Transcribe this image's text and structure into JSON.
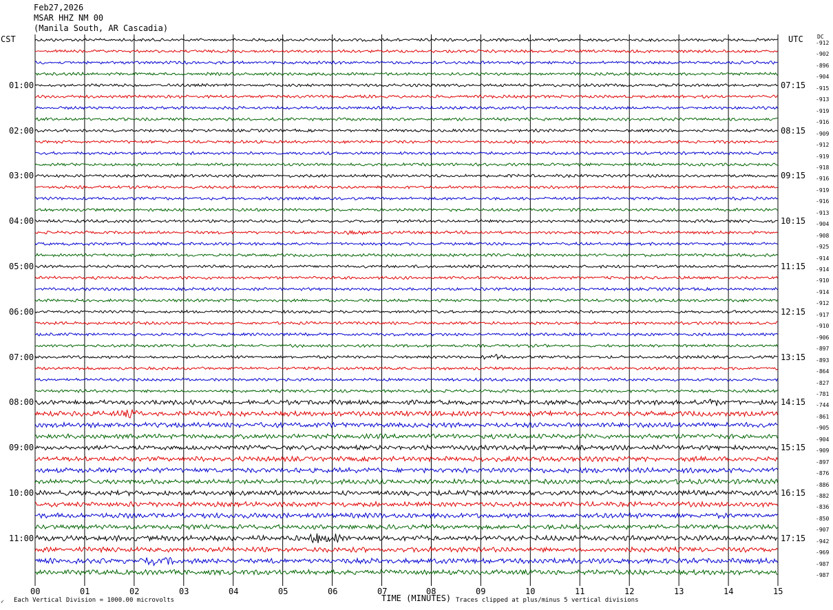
{
  "header": {
    "date": "Feb27,2026",
    "station": "MSAR HHZ NM 00",
    "location": "(Manila South, AR Cascadia)"
  },
  "left_timezone": "CST",
  "right_timezone": "UTC",
  "dc_header": "DC",
  "footer": {
    "corner_mark": "✓",
    "scale_note": "Each Vertical Division = 1000.00 microvolts",
    "xlabel": "TIME (MINUTES)",
    "clip_note": "Traces clipped at plus/minus 5 vertical divisions"
  },
  "chart_data": {
    "type": "line",
    "xlabel": "TIME (MINUTES)",
    "xlim": [
      0,
      15
    ],
    "x_ticks": [
      "00",
      "01",
      "02",
      "03",
      "04",
      "05",
      "06",
      "07",
      "08",
      "09",
      "10",
      "11",
      "12",
      "13",
      "14",
      "15"
    ],
    "left_hour_labels": [
      "01:00",
      "02:00",
      "03:00",
      "04:00",
      "05:00",
      "06:00",
      "07:00",
      "08:00",
      "09:00",
      "10:00",
      "11:00"
    ],
    "right_hour_labels": [
      "07:15",
      "08:15",
      "09:15",
      "10:15",
      "11:15",
      "12:15",
      "13:15",
      "14:15",
      "15:15",
      "16:15",
      "17:15"
    ],
    "trace_colors": [
      "#000000",
      "#e00000",
      "#0000d0",
      "#006400"
    ],
    "rows_count": 48,
    "dc_offsets": [
      -912,
      -902,
      -896,
      -904,
      -915,
      -913,
      -919,
      -916,
      -909,
      -912,
      -919,
      -918,
      -916,
      -919,
      -916,
      -913,
      -904,
      -908,
      -925,
      -914,
      -914,
      -910,
      -914,
      -912,
      -917,
      -910,
      -906,
      -897,
      -893,
      -864,
      -827,
      -781,
      -744,
      -861,
      -905,
      -904,
      -909,
      -897,
      -876,
      -886,
      -882,
      -836,
      -850,
      -907,
      -942,
      -969,
      -987,
      -987
    ],
    "amplitude": [
      1,
      1,
      1,
      1,
      1,
      1,
      1,
      1,
      1,
      1,
      1,
      1,
      1,
      1,
      1,
      1,
      1,
      1,
      1,
      1,
      1,
      1,
      1,
      1,
      1,
      1,
      1,
      1,
      1,
      1,
      1,
      1,
      1.6,
      1.7,
      1.7,
      1.6,
      1.6,
      1.7,
      1.7,
      1.6,
      1.7,
      1.7,
      1.7,
      1.6,
      1.8,
      1.7,
      1.8,
      1.7
    ],
    "events": [
      {
        "row": 17,
        "minute": 6.5,
        "amp": 2.0
      },
      {
        "row": 28,
        "minute": 9.3,
        "amp": 2.0
      },
      {
        "row": 44,
        "minute": 5.85,
        "amp": 4.0
      },
      {
        "row": 46,
        "minute": 2.5,
        "amp": 2.0
      },
      {
        "row": 32,
        "minute": 13.7,
        "amp": 1.8
      },
      {
        "row": 33,
        "minute": 1.9,
        "amp": 1.8
      }
    ]
  }
}
